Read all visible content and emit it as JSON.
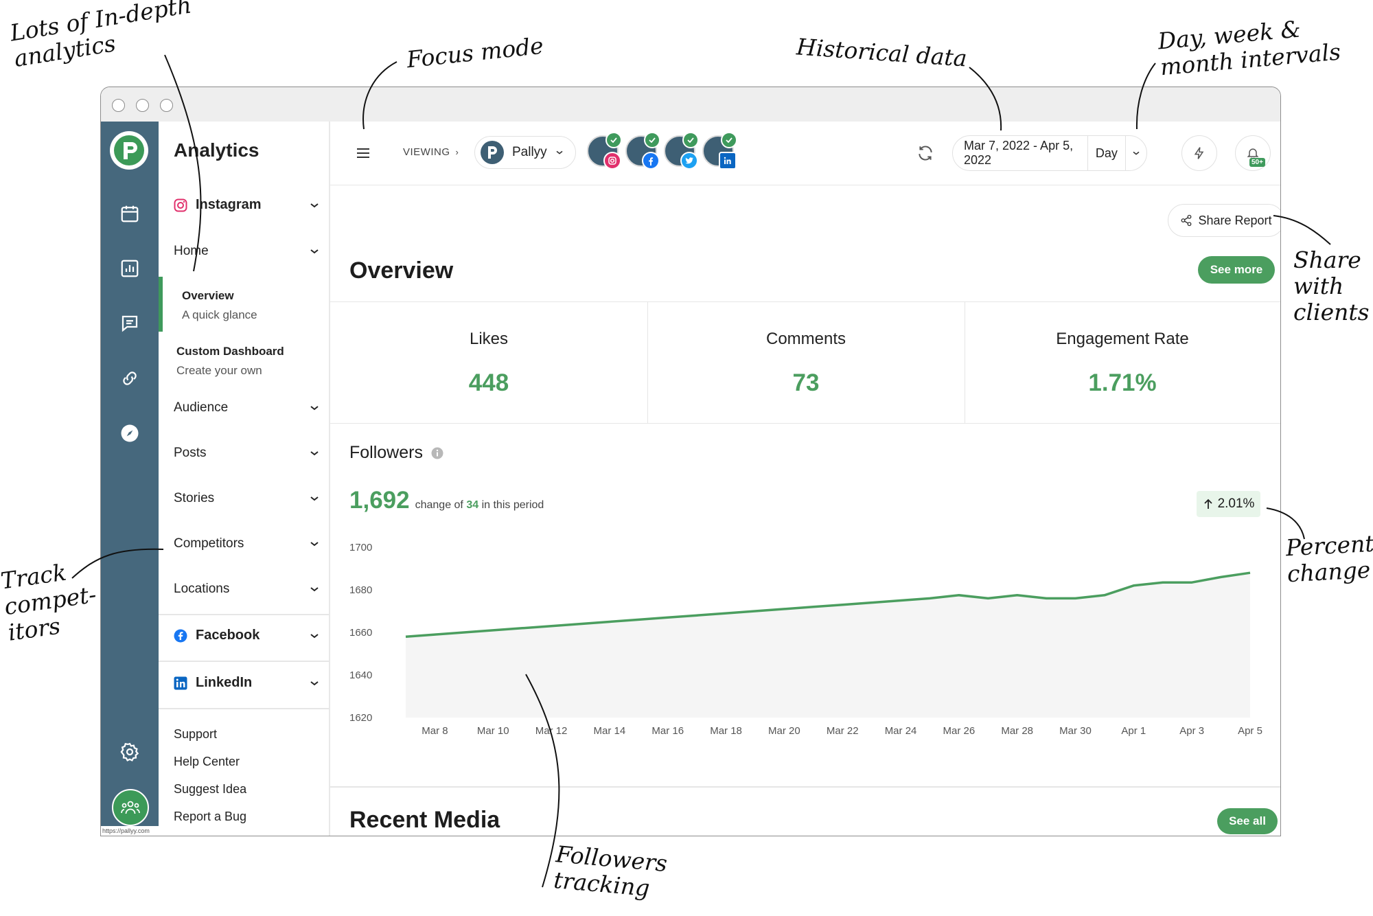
{
  "annotations": {
    "in_depth": "Lots of In-depth\nanalytics",
    "focus_mode": "Focus mode",
    "historical": "Historical data",
    "intervals": "Day, week &\nmonth intervals",
    "share": "Share\nwith\nclients",
    "competitors": "Track\ncompet-\nitors",
    "percent": "Percent\nchange",
    "followers": "Followers\ntracking"
  },
  "nav": {
    "title": "Analytics",
    "instagram": "Instagram",
    "home": "Home",
    "overview_title": "Overview",
    "overview_desc": "A quick glance",
    "custom_title": "Custom Dashboard",
    "custom_desc": "Create your own",
    "audience": "Audience",
    "posts": "Posts",
    "stories": "Stories",
    "competitors": "Competitors",
    "locations": "Locations",
    "facebook": "Facebook",
    "linkedin": "LinkedIn",
    "support": "Support",
    "help": "Help Center",
    "suggest": "Suggest Idea",
    "bug": "Report a Bug"
  },
  "status_url": "https://pallyy.com",
  "topbar": {
    "viewing": "VIEWING",
    "account": "Pallyy",
    "date_range": "Mar 7, 2022 - Apr 5, 2022",
    "interval": "Day",
    "notification_count": "50+"
  },
  "main": {
    "share_report": "Share Report",
    "overview_title": "Overview",
    "see_more": "See more",
    "recent_media": "Recent Media",
    "see_all": "See all"
  },
  "stats": [
    {
      "label": "Likes",
      "value": "448"
    },
    {
      "label": "Comments",
      "value": "73"
    },
    {
      "label": "Engagement Rate",
      "value": "1.71%"
    }
  ],
  "followers": {
    "title": "Followers",
    "total": "1,692",
    "change_prefix": "change of",
    "change_value": "34",
    "change_suffix": "in this period",
    "percent": "2.01%"
  },
  "colors": {
    "rail": "#46687d",
    "accent_green": "#4b9e5f",
    "instagram": "#e1306c",
    "facebook": "#1877f2",
    "twitter": "#1da1f2",
    "linkedin": "#0a66c2"
  },
  "chart_data": {
    "type": "area",
    "x": [
      "Mar 7",
      "Mar 8",
      "Mar 9",
      "Mar 10",
      "Mar 11",
      "Mar 12",
      "Mar 13",
      "Mar 14",
      "Mar 15",
      "Mar 16",
      "Mar 17",
      "Mar 18",
      "Mar 19",
      "Mar 20",
      "Mar 21",
      "Mar 22",
      "Mar 23",
      "Mar 24",
      "Mar 25",
      "Mar 26",
      "Mar 27",
      "Mar 28",
      "Mar 29",
      "Mar 30",
      "Mar 31",
      "Apr 1",
      "Apr 2",
      "Apr 3",
      "Apr 4",
      "Apr 5"
    ],
    "series": [
      {
        "values": [
          1658,
          1659,
          1660,
          1661,
          1662,
          1663,
          1664,
          1665,
          1666,
          1667,
          1668,
          1669,
          1670,
          1671,
          1672,
          1673,
          1674,
          1675,
          1676,
          1677.5,
          1676,
          1677.5,
          1676,
          1676,
          1677.5,
          1682,
          1683.5,
          1683.5,
          1686,
          1688
        ]
      }
    ],
    "xticks": [
      "Mar 8",
      "Mar 10",
      "Mar 12",
      "Mar 14",
      "Mar 16",
      "Mar 18",
      "Mar 20",
      "Mar 22",
      "Mar 24",
      "Mar 26",
      "Mar 28",
      "Mar 30",
      "Apr 1",
      "Apr 3",
      "Apr 5"
    ],
    "yticks": [
      1700,
      1680,
      1660,
      1640,
      1620
    ],
    "ylim": [
      1620,
      1700
    ],
    "grid": false
  }
}
